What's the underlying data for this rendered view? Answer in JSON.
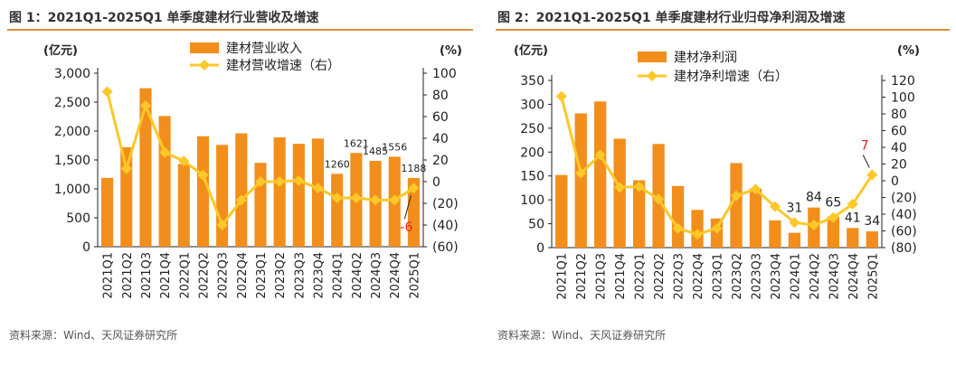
{
  "charts": [
    {
      "title": "图 1：2021Q1-2025Q1 单季度建材行业营收及增速",
      "source": "资料来源：Wind、天风证券研究所",
      "chart_data": {
        "type": "bar",
        "categories": [
          "2021Q1",
          "2021Q2",
          "2021Q3",
          "2021Q4",
          "2022Q1",
          "2022Q2",
          "2022Q3",
          "2022Q4",
          "2023Q1",
          "2023Q2",
          "2023Q3",
          "2023Q4",
          "2024Q1",
          "2024Q2",
          "2024Q3",
          "2024Q4",
          "2025Q1"
        ],
        "left_unit": "(亿元)",
        "right_unit": "(%)",
        "left_ticks": [
          "0",
          "500",
          "1,000",
          "1,500",
          "2,000",
          "2,500",
          "3,000"
        ],
        "right_ticks": [
          "(60)",
          "(40)",
          "(20)",
          "0",
          "20",
          "40",
          "60",
          "80",
          "100"
        ],
        "ylim_left": [
          0,
          3000
        ],
        "ylim_right": [
          -60,
          100
        ],
        "series": [
          {
            "name": "建材营业收入",
            "kind": "bar",
            "color": "#f28e1c",
            "values": [
              1190,
              1720,
              2740,
              2260,
              1430,
              1910,
              1760,
              1960,
              1450,
              1890,
              1780,
              1870,
              1260,
              1621,
              1485,
              1556,
              1188
            ]
          },
          {
            "name": "建材营收增速（右）",
            "kind": "line",
            "color": "#fdc828",
            "values": [
              83,
              12,
              70,
              27,
              19,
              6,
              -40,
              -17,
              0,
              0,
              1,
              -6,
              -15,
              -15,
              -17,
              -17,
              -6
            ]
          }
        ],
        "bar_labels": [
          {
            "index": 12,
            "text": "1260"
          },
          {
            "index": 13,
            "text": "1621"
          },
          {
            "index": 14,
            "text": "1485"
          },
          {
            "index": 15,
            "text": "1556"
          },
          {
            "index": 16,
            "text": "1188"
          }
        ],
        "line_label": {
          "index": 16,
          "text": "-6",
          "color": "#e02020"
        },
        "legend_position": "top-center"
      }
    },
    {
      "title": "图 2：2021Q1-2025Q1 单季度建材行业归母净利润及增速",
      "source": "资料来源：Wind、天风证券研究所",
      "chart_data": {
        "type": "bar",
        "categories": [
          "2021Q1",
          "2021Q2",
          "2021Q3",
          "2021Q4",
          "2022Q1",
          "2022Q2",
          "2022Q3",
          "2022Q4",
          "2023Q1",
          "2023Q2",
          "2023Q3",
          "2023Q4",
          "2024Q1",
          "2024Q2",
          "2024Q3",
          "2024Q4",
          "2025Q1"
        ],
        "left_unit": "(亿元)",
        "right_unit": "(%)",
        "left_ticks": [
          "0",
          "50",
          "100",
          "150",
          "200",
          "250",
          "300",
          "350"
        ],
        "right_ticks": [
          "(80)",
          "(60)",
          "(40)",
          "(20)",
          "0",
          "20",
          "40",
          "60",
          "80",
          "100",
          "120"
        ],
        "ylim_left": [
          0,
          350
        ],
        "ylim_right": [
          -80,
          120
        ],
        "series": [
          {
            "name": "建材净利润",
            "kind": "bar",
            "color": "#f28e1c",
            "values": [
              152,
              281,
              306,
              228,
              141,
              217,
              129,
              79,
              61,
              177,
              124,
              57,
              31,
              84,
              65,
              41,
              34
            ]
          },
          {
            "name": "建材净利增速（右）",
            "kind": "line",
            "color": "#fdc828",
            "values": [
              101,
              9,
              31,
              -8,
              -7,
              -22,
              -57,
              -64,
              -57,
              -18,
              -10,
              -31,
              -50,
              -53,
              -44,
              -28,
              7
            ]
          }
        ],
        "bar_labels": [
          {
            "index": 12,
            "text": "31"
          },
          {
            "index": 13,
            "text": "84"
          },
          {
            "index": 14,
            "text": "65"
          },
          {
            "index": 15,
            "text": "41"
          },
          {
            "index": 16,
            "text": "34"
          }
        ],
        "line_label": {
          "index": 16,
          "text": "7",
          "color": "#e02020"
        },
        "legend_position": "top-center"
      }
    }
  ]
}
